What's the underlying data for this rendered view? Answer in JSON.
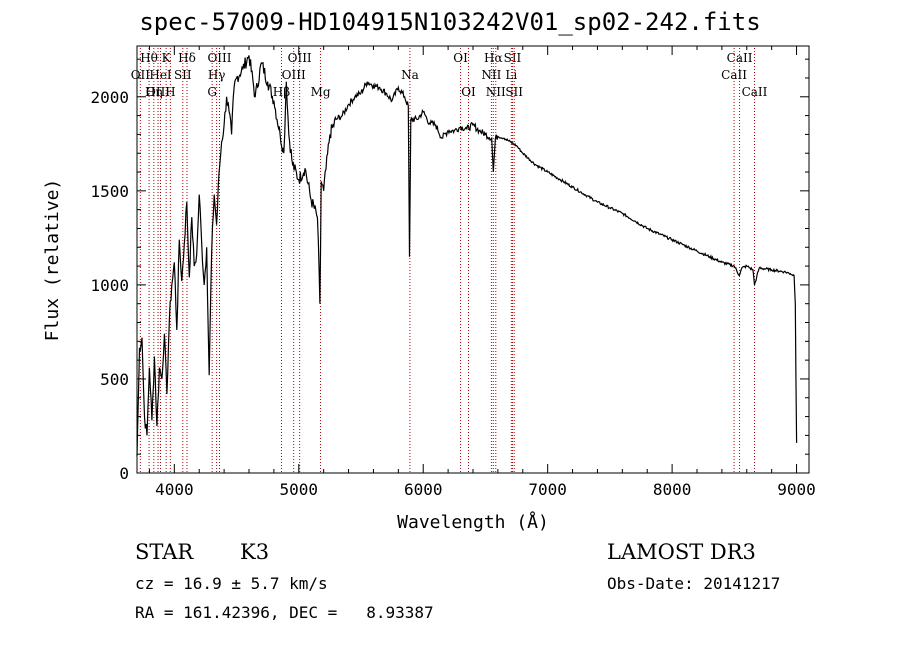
{
  "chart_data": {
    "type": "line",
    "title": "spec-57009-HD104915N103242V01_sp02-242.fits",
    "xlabel": "Wavelength (Å)",
    "ylabel": "Flux (relative)",
    "xlim": [
      3700,
      9100
    ],
    "ylim": [
      0,
      2270
    ],
    "x_ticks": [
      4000,
      5000,
      6000,
      7000,
      8000,
      9000
    ],
    "x_tick_labels": [
      "4000",
      "5000",
      "6000",
      "7000",
      "8000",
      "9000"
    ],
    "y_ticks": [
      0,
      500,
      1000,
      1500,
      2000
    ],
    "y_tick_labels": [
      "0",
      "500",
      "1000",
      "1500",
      "2000"
    ],
    "series": [
      {
        "name": "flux",
        "x": [
          3700,
          3720,
          3740,
          3760,
          3780,
          3800,
          3820,
          3840,
          3860,
          3880,
          3900,
          3920,
          3940,
          3960,
          3980,
          4000,
          4020,
          4040,
          4060,
          4080,
          4100,
          4120,
          4140,
          4160,
          4180,
          4200,
          4220,
          4240,
          4260,
          4280,
          4300,
          4320,
          4340,
          4360,
          4380,
          4400,
          4420,
          4440,
          4460,
          4480,
          4500,
          4550,
          4600,
          4650,
          4700,
          4750,
          4800,
          4850,
          4880,
          4900,
          4920,
          4950,
          5000,
          5050,
          5100,
          5150,
          5170,
          5180,
          5200,
          5250,
          5300,
          5350,
          5400,
          5450,
          5500,
          5550,
          5600,
          5650,
          5700,
          5750,
          5800,
          5850,
          5880,
          5890,
          5900,
          5950,
          6000,
          6050,
          6100,
          6150,
          6200,
          6250,
          6300,
          6350,
          6400,
          6450,
          6500,
          6550,
          6563,
          6580,
          6600,
          6650,
          6700,
          6750,
          6800,
          6900,
          7000,
          7100,
          7200,
          7300,
          7400,
          7500,
          7600,
          7700,
          7800,
          7900,
          8000,
          8100,
          8200,
          8300,
          8400,
          8500,
          8540,
          8560,
          8600,
          8650,
          8662,
          8700,
          8800,
          8900,
          8950,
          8980,
          8990,
          9000
        ],
        "values": [
          90,
          660,
          720,
          300,
          200,
          560,
          280,
          620,
          250,
          560,
          500,
          740,
          420,
          820,
          1000,
          1120,
          760,
          1240,
          1020,
          1220,
          1440,
          1040,
          1360,
          1100,
          1160,
          1480,
          1220,
          1000,
          1200,
          520,
          1180,
          1480,
          1320,
          1600,
          1760,
          1850,
          2000,
          1920,
          1800,
          2050,
          2100,
          2150,
          2220,
          2000,
          2180,
          2080,
          1980,
          1800,
          1700,
          2080,
          1800,
          1640,
          1560,
          1620,
          1450,
          1360,
          900,
          1550,
          1500,
          1800,
          1880,
          1900,
          1960,
          2000,
          2020,
          2080,
          2060,
          2050,
          2020,
          1980,
          2050,
          2000,
          1950,
          1150,
          1880,
          1880,
          1920,
          1860,
          1850,
          1780,
          1820,
          1820,
          1840,
          1830,
          1850,
          1820,
          1800,
          1780,
          1600,
          1780,
          1790,
          1780,
          1760,
          1740,
          1700,
          1640,
          1600,
          1560,
          1520,
          1480,
          1440,
          1410,
          1380,
          1340,
          1300,
          1270,
          1240,
          1210,
          1180,
          1150,
          1120,
          1100,
          1050,
          1090,
          1100,
          1080,
          1000,
          1090,
          1080,
          1070,
          1060,
          1050,
          900,
          160
        ]
      }
    ],
    "spectral_lines": [
      {
        "name": "Hθ",
        "wave": 3797,
        "row": 0
      },
      {
        "name": "OII",
        "wave": 3727,
        "row": 1
      },
      {
        "name": "OIII",
        "wave": 3869,
        "row": 2
      },
      {
        "name": "K",
        "wave": 3934,
        "row": 0
      },
      {
        "name": "HeI",
        "wave": 3889,
        "row": 1
      },
      {
        "name": "Hη",
        "wave": 3835,
        "row": 2
      },
      {
        "name": "Hδ",
        "wave": 4102,
        "row": 0
      },
      {
        "name": "SII",
        "wave": 4068,
        "row": 1
      },
      {
        "name": "H",
        "wave": 3968,
        "row": 2
      },
      {
        "name": "OIII",
        "wave": 4363,
        "row": 0
      },
      {
        "name": "Hγ",
        "wave": 4340,
        "row": 1
      },
      {
        "name": "G",
        "wave": 4304,
        "row": 2
      },
      {
        "name": "OIII",
        "wave": 5007,
        "row": 0
      },
      {
        "name": "OIII",
        "wave": 4959,
        "row": 1
      },
      {
        "name": "Hβ",
        "wave": 4861,
        "row": 2
      },
      {
        "name": "Mg",
        "wave": 5175,
        "row": 2
      },
      {
        "name": "Na",
        "wave": 5893,
        "row": 1
      },
      {
        "name": "OI",
        "wave": 6300,
        "row": 0
      },
      {
        "name": "OI",
        "wave": 6364,
        "row": 2
      },
      {
        "name": "Hα",
        "wave": 6563,
        "row": 0
      },
      {
        "name": "SII",
        "wave": 6717,
        "row": 0
      },
      {
        "name": "NII",
        "wave": 6548,
        "row": 1
      },
      {
        "name": "Li",
        "wave": 6708,
        "row": 1
      },
      {
        "name": "NII",
        "wave": 6583,
        "row": 2
      },
      {
        "name": "SII",
        "wave": 6731,
        "row": 2
      },
      {
        "name": "CaII",
        "wave": 8542,
        "row": 0
      },
      {
        "name": "CaII",
        "wave": 8498,
        "row": 1
      },
      {
        "name": "CaII",
        "wave": 8662,
        "row": 2
      }
    ]
  },
  "info": {
    "star_label": "STAR",
    "spectral_class": "K3",
    "survey": "LAMOST DR3",
    "cz": "cz = 16.9 ± 5.7 km/s",
    "obs_date": "Obs-Date: 20141217",
    "coords": "RA = 161.42396, DEC =   8.93387"
  },
  "colors": {
    "line_marker": "#b00000",
    "spectrum": "#000000"
  }
}
